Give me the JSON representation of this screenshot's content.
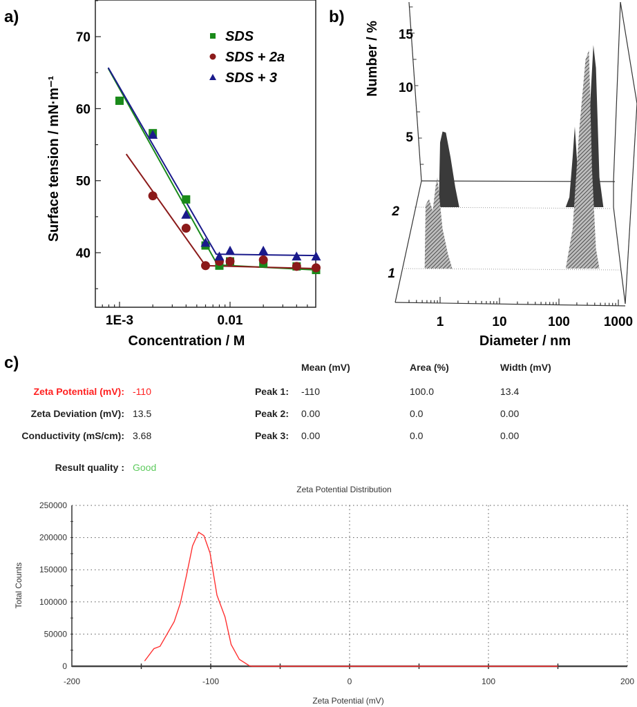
{
  "panel_labels": {
    "a": "a)",
    "b": "b)",
    "c": "c)"
  },
  "chart_data": [
    {
      "type": "scatter",
      "panel": "a)",
      "xlabel": "Concentration / M",
      "ylabel": "Surface tension / mN·m⁻¹",
      "xscale": "log",
      "xlim": [
        0.0006,
        0.06
      ],
      "ylim": [
        32.4,
        75
      ],
      "xticks": [
        {
          "value": 0.001,
          "label": "1E-3"
        },
        {
          "value": 0.01,
          "label": "0.01"
        }
      ],
      "yticks": [
        40,
        50,
        60,
        70
      ],
      "grid": false,
      "legend_position": "top-right",
      "series": [
        {
          "name": "SDS",
          "marker": "square",
          "color": "#1a8a1a",
          "points": [
            [
              0.001,
              61.1
            ],
            [
              0.002,
              56.6
            ],
            [
              0.004,
              47.4
            ],
            [
              0.006,
              41.0
            ],
            [
              0.008,
              38.2
            ],
            [
              0.01,
              38.8
            ],
            [
              0.02,
              38.5
            ],
            [
              0.04,
              38.1
            ],
            [
              0.06,
              37.6
            ]
          ],
          "fit": [
            [
              0.00079,
              65.6
            ],
            [
              0.0077,
              38.3
            ],
            [
              0.06,
              37.6
            ]
          ]
        },
        {
          "name": "SDS + 2a",
          "marker": "circle",
          "color": "#8b1a1a",
          "points": [
            [
              0.002,
              47.9
            ],
            [
              0.004,
              43.4
            ],
            [
              0.006,
              38.2
            ],
            [
              0.008,
              38.8
            ],
            [
              0.01,
              38.8
            ],
            [
              0.02,
              39.0
            ],
            [
              0.04,
              38.1
            ],
            [
              0.06,
              37.9
            ]
          ],
          "fit": [
            [
              0.00115,
              53.7
            ],
            [
              0.006,
              38.2
            ],
            [
              0.06,
              37.8
            ]
          ]
        },
        {
          "name": "SDS + 3",
          "marker": "triangle",
          "color": "#1a1a8b",
          "points": [
            [
              0.002,
              56.4
            ],
            [
              0.004,
              45.3
            ],
            [
              0.006,
              41.4
            ],
            [
              0.008,
              39.5
            ],
            [
              0.01,
              40.3
            ],
            [
              0.02,
              40.3
            ],
            [
              0.04,
              39.5
            ],
            [
              0.06,
              39.5
            ]
          ],
          "fit": [
            [
              0.00079,
              65.7
            ],
            [
              0.0075,
              39.8
            ],
            [
              0.06,
              39.6
            ]
          ]
        }
      ]
    },
    {
      "type": "area",
      "panel": "b)",
      "xlabel": "Diameter / nm",
      "ylabel": "Number / %",
      "xscale": "log",
      "xticks": [
        1,
        10,
        100,
        1000
      ],
      "yticks": [
        5,
        10,
        15
      ],
      "depth_labels": [
        "1",
        "2"
      ],
      "series": [
        {
          "depth_label": "2",
          "fill": "#3a3a3a",
          "style": "solid",
          "points": [
            [
              0.95,
              0
            ],
            [
              1.0,
              6.5
            ],
            [
              1.1,
              7.6
            ],
            [
              1.25,
              7.5
            ],
            [
              1.5,
              5
            ],
            [
              1.8,
              2
            ],
            [
              2.1,
              0
            ],
            [
              130,
              0
            ],
            [
              150,
              1
            ],
            [
              170,
              5
            ],
            [
              185,
              8.1
            ],
            [
              205,
              4
            ],
            [
              225,
              0
            ],
            [
              300,
              0
            ],
            [
              340,
              11
            ],
            [
              380,
              16.3
            ],
            [
              420,
              14
            ],
            [
              480,
              3
            ],
            [
              560,
              0
            ],
            [
              700,
              0
            ]
          ]
        },
        {
          "depth_label": "1",
          "fill": "#888888",
          "style": "hatched",
          "points": [
            [
              0.55,
              0
            ],
            [
              0.57,
              6.4
            ],
            [
              0.65,
              7.0
            ],
            [
              0.75,
              5.8
            ],
            [
              0.85,
              8.5
            ],
            [
              0.9,
              9.2
            ],
            [
              1.1,
              4
            ],
            [
              1.35,
              1.5
            ],
            [
              1.6,
              0
            ],
            [
              130,
              0
            ],
            [
              170,
              4
            ],
            [
              220,
              14
            ],
            [
              280,
              21
            ],
            [
              320,
              22
            ],
            [
              360,
              10
            ],
            [
              420,
              2
            ],
            [
              480,
              0
            ]
          ]
        }
      ]
    },
    {
      "type": "line",
      "panel": "c)",
      "title": "Zeta Potential Distribution",
      "xlabel": "Zeta Potential (mV)",
      "ylabel": "Total Counts",
      "xlim": [
        -200,
        200
      ],
      "ylim": [
        0,
        250000
      ],
      "xticks": [
        -200,
        -100,
        0,
        100,
        200
      ],
      "yticks": [
        0,
        50000,
        100000,
        150000,
        200000,
        250000
      ],
      "grid": true,
      "color": "#ff3030",
      "points": [
        [
          -147.6,
          8190
        ],
        [
          -140.9,
          27400
        ],
        [
          -136.5,
          31000
        ],
        [
          -126.3,
          69400
        ],
        [
          -121.9,
          98000
        ],
        [
          -117.5,
          140700
        ],
        [
          -113.1,
          187000
        ],
        [
          -108.7,
          208300
        ],
        [
          -104.9,
          203000
        ],
        [
          -100.5,
          176000
        ],
        [
          -95.5,
          110400
        ],
        [
          -89.7,
          76600
        ],
        [
          -85.3,
          33800
        ],
        [
          -79.4,
          10700
        ],
        [
          -72.1,
          700
        ],
        [
          -70,
          0
        ],
        [
          150,
          0
        ]
      ]
    }
  ],
  "zeta_results": {
    "columns": [
      "Mean (mV)",
      "Area (%)",
      "Width (mV)"
    ],
    "summary": [
      {
        "label": "Zeta Potential (mV):",
        "value": "-110",
        "color": "#ff2020"
      },
      {
        "label": "Zeta Deviation (mV):",
        "value": "13.5"
      },
      {
        "label": "Conductivity (mS/cm):",
        "value": "3.68"
      }
    ],
    "peaks": [
      {
        "label": "Peak 1:",
        "mean": "-110",
        "area": "100.0",
        "width": "13.4"
      },
      {
        "label": "Peak 2:",
        "mean": "0.00",
        "area": "0.0",
        "width": "0.00"
      },
      {
        "label": "Peak 3:",
        "mean": "0.00",
        "area": "0.0",
        "width": "0.00"
      }
    ],
    "quality_label": "Result quality :",
    "quality_value": "Good",
    "quality_color": "#5ecb5e"
  }
}
